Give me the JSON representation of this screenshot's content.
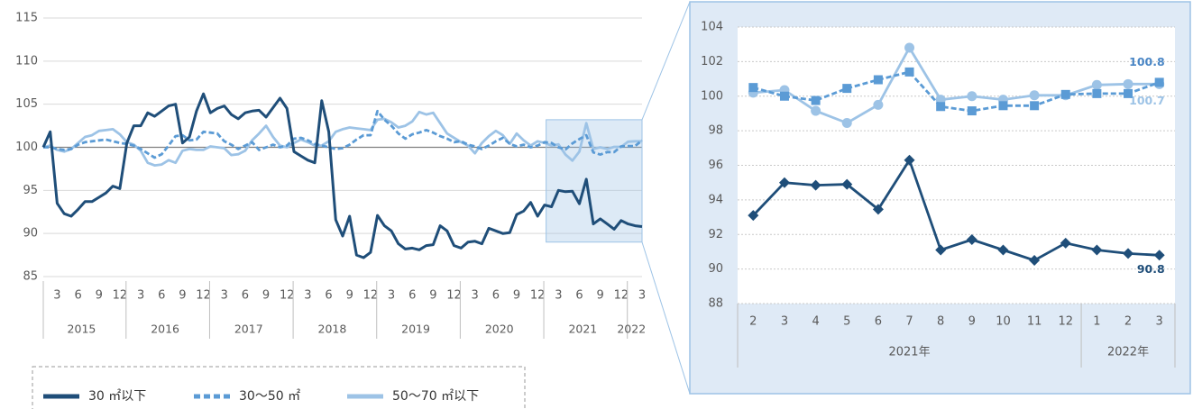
{
  "chart_data": [
    {
      "type": "line",
      "categories": [
        null,
        null,
        "3",
        null,
        null,
        "6",
        null,
        null,
        "9",
        null,
        null,
        "12",
        null,
        null,
        "3",
        null,
        null,
        "6",
        null,
        null,
        "9",
        null,
        null,
        "12",
        null,
        null,
        "3",
        null,
        null,
        "6",
        null,
        null,
        "9",
        null,
        null,
        "12",
        null,
        null,
        "3",
        null,
        null,
        "6",
        null,
        null,
        "9",
        null,
        null,
        "12",
        null,
        null,
        "3",
        null,
        null,
        "6",
        null,
        null,
        "9",
        null,
        null,
        "12",
        null,
        null,
        "3",
        null,
        null,
        "6",
        null,
        null,
        "9",
        null,
        null,
        "12",
        null,
        null,
        "3",
        null,
        null,
        "6",
        null,
        null,
        "9",
        null,
        null,
        "12",
        null,
        null,
        "3"
      ],
      "groups": [
        {
          "label": "2015",
          "size": 12
        },
        {
          "label": "2016",
          "size": 12
        },
        {
          "label": "2017",
          "size": 12
        },
        {
          "label": "2018",
          "size": 12
        },
        {
          "label": "2019",
          "size": 12
        },
        {
          "label": "2020",
          "size": 12
        },
        {
          "label": "2021",
          "size": 12
        },
        {
          "label": "2022",
          "size": 3
        }
      ],
      "ylim": [
        85,
        115
      ],
      "yticks": [
        85,
        90,
        95,
        100,
        105,
        110,
        115
      ],
      "grid": true,
      "reference_line": 100,
      "legend": "bottom-left",
      "series": [
        {
          "name": "30 ㎡以下",
          "color": "#1f4e79",
          "style": "solid",
          "values": [
            100,
            101.8,
            93.5,
            92.3,
            92,
            92.8,
            93.7,
            93.7,
            94.2,
            94.7,
            95.5,
            95.2,
            100.5,
            102.5,
            102.5,
            104,
            103.6,
            104.2,
            104.8,
            105,
            100.5,
            101.2,
            104.2,
            106.2,
            104,
            104.5,
            104.8,
            103.8,
            103.3,
            104,
            104.2,
            104.3,
            103.5,
            104.6,
            105.7,
            104.5,
            99.5,
            99,
            98.5,
            98.2,
            105.4,
            101.8,
            91.6,
            89.7,
            92,
            87.5,
            87.2,
            87.8,
            92.1,
            90.9,
            90.3,
            88.8,
            88.2,
            88.3,
            88.1,
            88.6,
            88.7,
            90.9,
            90.3,
            88.6,
            88.3,
            89,
            89.1,
            88.8,
            90.6,
            90.3,
            90,
            90.1,
            92.2,
            92.6,
            93.6,
            92,
            93.3,
            93.1,
            95,
            94.85,
            94.9,
            93.45,
            96.3,
            91.1,
            91.7,
            91.1,
            90.5,
            91.5,
            91.1,
            90.9,
            90.8
          ]
        },
        {
          "name": "30～50 ㎡",
          "color": "#5b9bd5",
          "style": "dashed",
          "values": [
            100,
            100,
            99.8,
            99.7,
            99.8,
            100.3,
            100.6,
            100.7,
            100.8,
            100.9,
            100.7,
            100.5,
            100.4,
            100.2,
            99.8,
            99.3,
            98.8,
            99.2,
            100.2,
            101.3,
            101.4,
            100.8,
            100.9,
            101.8,
            101.7,
            101.6,
            100.7,
            100.3,
            99.8,
            100.2,
            100.6,
            99.7,
            100,
            100.3,
            100,
            100.2,
            101,
            101.1,
            100.8,
            100.4,
            100.2,
            100,
            99.8,
            99.9,
            100.3,
            100.9,
            101.4,
            101.4,
            104.2,
            103.2,
            102.5,
            101.6,
            101,
            101.5,
            101.7,
            102,
            101.7,
            101.3,
            101,
            100.6,
            100.7,
            100.3,
            100.1,
            99.8,
            100.2,
            100.7,
            101.1,
            100.4,
            100.1,
            100.3,
            100,
            100.2,
            100.6,
            100.5,
            100,
            99.75,
            100.45,
            100.95,
            101.4,
            99.4,
            99.15,
            99.45,
            99.45,
            100.1,
            100.15,
            100.15,
            100.8
          ]
        },
        {
          "name": "50～70 ㎡以下",
          "color": "#9dc3e6",
          "style": "solid",
          "values": [
            100,
            100.2,
            99.7,
            99.5,
            99.8,
            100.5,
            101.2,
            101.4,
            101.9,
            102,
            102.1,
            101.5,
            100.6,
            100.3,
            99.6,
            98.2,
            97.9,
            98,
            98.5,
            98.2,
            99.6,
            99.8,
            99.7,
            99.7,
            100.1,
            100,
            99.9,
            99.1,
            99.2,
            99.6,
            100.8,
            101.6,
            102.5,
            101.2,
            100.2,
            100,
            100.5,
            100.9,
            100.6,
            100.2,
            100.2,
            100.7,
            101.8,
            102.1,
            102.3,
            102.2,
            102.1,
            102,
            103.2,
            103.3,
            102.9,
            102.3,
            102.5,
            103,
            104.1,
            103.8,
            104,
            102.8,
            101.6,
            101.1,
            100.6,
            100.2,
            99.3,
            100.5,
            101.3,
            101.9,
            101.4,
            100.4,
            101.6,
            100.8,
            100.2,
            100.7,
            100.5,
            100.2,
            100.35,
            99.15,
            98.45,
            99.5,
            102.8,
            99.8,
            100,
            99.8,
            100.05,
            100.05,
            100.65,
            100.7,
            100.7
          ]
        }
      ],
      "zoom_ylim": [
        89,
        103.2
      ]
    },
    {
      "type": "line",
      "categories": [
        "2",
        "3",
        "4",
        "5",
        "6",
        "7",
        "8",
        "9",
        "10",
        "11",
        "12",
        "1",
        "2",
        "3"
      ],
      "groups": [
        {
          "label": "2021年",
          "size": 11
        },
        {
          "label": "2022年",
          "size": 3
        }
      ],
      "ylim": [
        88,
        104
      ],
      "yticks": [
        88,
        90,
        92,
        94,
        96,
        98,
        100,
        102,
        104
      ],
      "grid": true,
      "data_labels": "last",
      "series": [
        {
          "color": "#1f4e79",
          "style": "solid",
          "marker": "diamond",
          "values": [
            93.1,
            95,
            94.85,
            94.9,
            93.45,
            96.3,
            91.1,
            91.7,
            91.1,
            90.5,
            91.5,
            91.1,
            90.9,
            90.8
          ]
        },
        {
          "color": "#5b9bd5",
          "style": "dashed",
          "marker": "square",
          "values": [
            100.5,
            100,
            99.75,
            100.45,
            100.95,
            101.4,
            99.4,
            99.15,
            99.45,
            99.45,
            100.1,
            100.15,
            100.15,
            100.8
          ]
        },
        {
          "color": "#9dc3e6",
          "style": "solid",
          "marker": "circle",
          "values": [
            100.2,
            100.35,
            99.15,
            98.45,
            99.5,
            102.8,
            99.8,
            100,
            99.8,
            100.05,
            100.05,
            100.65,
            100.7,
            100.7
          ]
        }
      ]
    }
  ]
}
